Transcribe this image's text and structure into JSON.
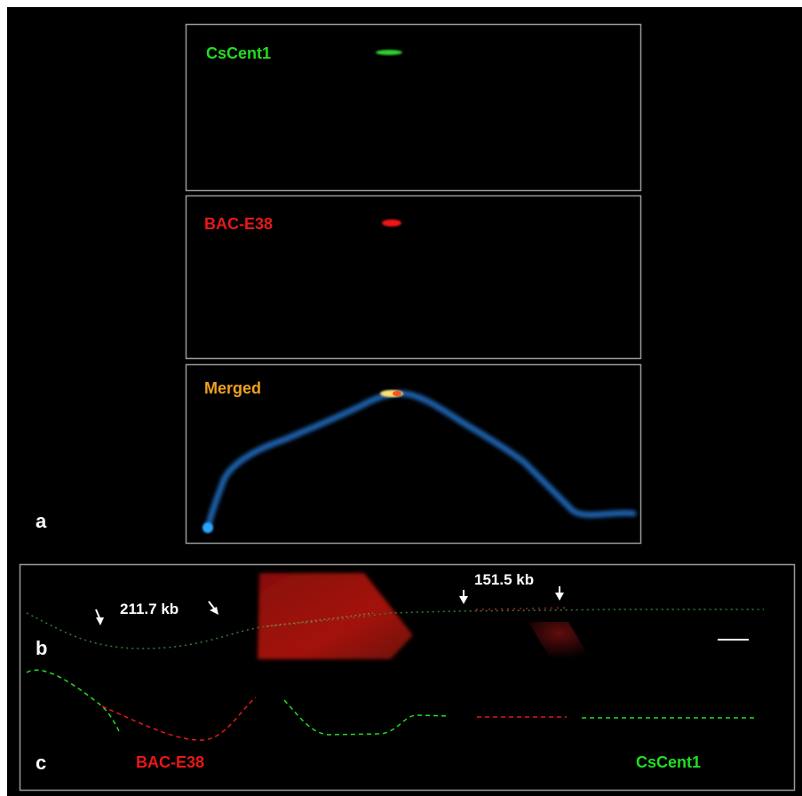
{
  "panels": [
    {
      "label": "CsCent1"
    },
    {
      "label": "BAC-E38"
    },
    {
      "label": "Merged"
    }
  ],
  "panel_letters": [
    "a",
    "b",
    "c"
  ],
  "fiber_annotations": [
    "211.7 kb",
    "151.5 kb"
  ],
  "diagram_labels": [
    "BAC-E38",
    "CsCent1"
  ]
}
